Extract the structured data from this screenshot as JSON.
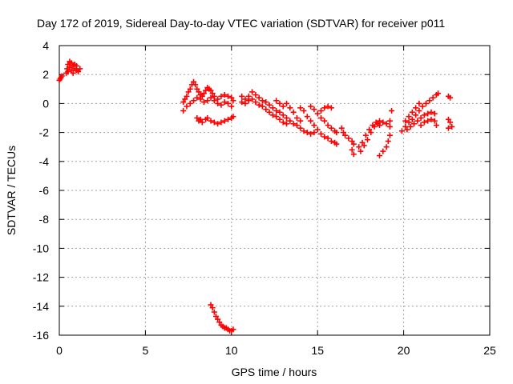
{
  "chart_data": {
    "type": "scatter",
    "title": "Day 172 of 2019, Sidereal Day-to-day VTEC variation (SDTVAR) for receiver p011",
    "xlabel": "GPS time / hours",
    "ylabel": "SDTVAR / TECUs",
    "xlim": [
      0,
      25
    ],
    "ylim": [
      -16,
      4
    ],
    "xticks": [
      0,
      5,
      10,
      15,
      20,
      25
    ],
    "yticks": [
      4,
      2,
      0,
      -2,
      -4,
      -6,
      -8,
      -10,
      -12,
      -14,
      -16
    ],
    "grid": true,
    "marker": "+",
    "color": "#ff0000",
    "series": [
      {
        "name": "SDTVAR",
        "points": [
          [
            0.0,
            1.6
          ],
          [
            0.05,
            1.7
          ],
          [
            0.1,
            1.8
          ],
          [
            0.15,
            1.9
          ],
          [
            0.4,
            2.1
          ],
          [
            0.45,
            2.4
          ],
          [
            0.5,
            2.7
          ],
          [
            0.6,
            2.9
          ],
          [
            0.7,
            2.8
          ],
          [
            0.8,
            2.6
          ],
          [
            0.9,
            2.4
          ],
          [
            1.0,
            2.3
          ],
          [
            1.1,
            2.2
          ],
          [
            1.2,
            2.4
          ],
          [
            0.5,
            2.2
          ],
          [
            0.6,
            2.5
          ],
          [
            0.7,
            2.3
          ],
          [
            0.8,
            2.1
          ],
          [
            0.9,
            2.7
          ],
          [
            1.0,
            2.6
          ],
          [
            7.2,
            0.1
          ],
          [
            7.3,
            0.3
          ],
          [
            7.4,
            0.5
          ],
          [
            7.5,
            0.8
          ],
          [
            7.6,
            1.0
          ],
          [
            7.7,
            1.3
          ],
          [
            7.8,
            1.5
          ],
          [
            7.9,
            1.3
          ],
          [
            8.0,
            1.0
          ],
          [
            8.1,
            0.8
          ],
          [
            8.2,
            0.6
          ],
          [
            8.3,
            0.5
          ],
          [
            8.4,
            0.7
          ],
          [
            8.5,
            0.9
          ],
          [
            8.6,
            1.1
          ],
          [
            8.7,
            1.0
          ],
          [
            8.8,
            0.9
          ],
          [
            8.9,
            0.7
          ],
          [
            9.0,
            0.5
          ],
          [
            9.2,
            0.3
          ],
          [
            9.4,
            0.5
          ],
          [
            9.6,
            0.6
          ],
          [
            9.8,
            0.5
          ],
          [
            10.0,
            0.4
          ],
          [
            10.1,
            0.2
          ],
          [
            7.2,
            -0.5
          ],
          [
            7.4,
            -0.2
          ],
          [
            7.6,
            0.0
          ],
          [
            7.8,
            0.2
          ],
          [
            8.0,
            0.4
          ],
          [
            8.2,
            0.3
          ],
          [
            8.4,
            0.1
          ],
          [
            8.6,
            0.2
          ],
          [
            8.8,
            0.4
          ],
          [
            9.0,
            0.2
          ],
          [
            9.2,
            0.0
          ],
          [
            9.4,
            -0.1
          ],
          [
            9.6,
            0.1
          ],
          [
            9.8,
            0.0
          ],
          [
            10.0,
            -0.2
          ],
          [
            8.0,
            -1.0
          ],
          [
            8.1,
            -1.2
          ],
          [
            8.2,
            -1.1
          ],
          [
            8.3,
            -1.3
          ],
          [
            8.5,
            -1.1
          ],
          [
            8.6,
            -1.0
          ],
          [
            8.8,
            -1.2
          ],
          [
            9.0,
            -1.3
          ],
          [
            9.2,
            -1.4
          ],
          [
            9.4,
            -1.3
          ],
          [
            9.6,
            -1.2
          ],
          [
            9.8,
            -1.1
          ],
          [
            10.0,
            -1.0
          ],
          [
            10.1,
            -0.9
          ],
          [
            8.8,
            -13.9
          ],
          [
            8.9,
            -14.1
          ],
          [
            9.0,
            -14.4
          ],
          [
            9.1,
            -14.7
          ],
          [
            9.2,
            -14.9
          ],
          [
            9.3,
            -15.1
          ],
          [
            9.4,
            -15.3
          ],
          [
            9.5,
            -15.4
          ],
          [
            9.6,
            -15.5
          ],
          [
            9.7,
            -15.5
          ],
          [
            9.8,
            -15.6
          ],
          [
            9.9,
            -15.7
          ],
          [
            10.0,
            -15.7
          ],
          [
            10.1,
            -15.6
          ],
          [
            10.6,
            0.5
          ],
          [
            10.8,
            0.3
          ],
          [
            11.0,
            0.5
          ],
          [
            11.2,
            0.8
          ],
          [
            11.4,
            0.6
          ],
          [
            11.6,
            0.4
          ],
          [
            11.8,
            0.2
          ],
          [
            12.0,
            0.1
          ],
          [
            12.2,
            -0.1
          ],
          [
            12.4,
            -0.3
          ],
          [
            12.6,
            -0.5
          ],
          [
            12.8,
            -0.6
          ],
          [
            13.0,
            -0.8
          ],
          [
            13.2,
            -1.0
          ],
          [
            10.6,
            0.1
          ],
          [
            10.8,
            0.0
          ],
          [
            11.0,
            0.2
          ],
          [
            11.2,
            0.3
          ],
          [
            11.4,
            0.1
          ],
          [
            11.6,
            -0.1
          ],
          [
            11.8,
            -0.2
          ],
          [
            12.0,
            -0.4
          ],
          [
            12.2,
            -0.6
          ],
          [
            12.4,
            -0.8
          ],
          [
            12.6,
            -0.9
          ],
          [
            12.8,
            -1.1
          ],
          [
            13.0,
            -1.3
          ],
          [
            13.2,
            -1.4
          ],
          [
            12.6,
            0.2
          ],
          [
            12.8,
            0.0
          ],
          [
            13.0,
            -0.2
          ],
          [
            13.2,
            0.0
          ],
          [
            13.4,
            -0.3
          ],
          [
            13.6,
            -0.6
          ],
          [
            13.8,
            -1.0
          ],
          [
            14.0,
            -1.2
          ],
          [
            13.4,
            -1.2
          ],
          [
            13.6,
            -1.4
          ],
          [
            13.8,
            -1.5
          ],
          [
            14.0,
            -1.7
          ],
          [
            14.2,
            -1.9
          ],
          [
            14.4,
            -2.0
          ],
          [
            14.6,
            -2.1
          ],
          [
            14.8,
            -2.0
          ],
          [
            14.0,
            -0.3
          ],
          [
            14.2,
            -0.5
          ],
          [
            14.4,
            -0.9
          ],
          [
            14.6,
            -1.2
          ],
          [
            14.8,
            -1.5
          ],
          [
            15.0,
            -1.8
          ],
          [
            15.2,
            -2.1
          ],
          [
            15.4,
            -2.3
          ],
          [
            15.6,
            -2.4
          ],
          [
            15.8,
            -2.6
          ],
          [
            16.0,
            -2.7
          ],
          [
            16.1,
            -2.8
          ],
          [
            14.6,
            -0.2
          ],
          [
            14.8,
            -0.4
          ],
          [
            15.0,
            -0.7
          ],
          [
            15.2,
            -0.5
          ],
          [
            15.4,
            -0.3
          ],
          [
            15.6,
            -0.2
          ],
          [
            15.8,
            -0.3
          ],
          [
            15.2,
            -1.0
          ],
          [
            15.4,
            -1.2
          ],
          [
            15.6,
            -1.5
          ],
          [
            15.8,
            -1.7
          ],
          [
            16.0,
            -1.9
          ],
          [
            16.1,
            -2.0
          ],
          [
            16.4,
            -1.7
          ],
          [
            16.5,
            -2.0
          ],
          [
            16.6,
            -2.2
          ],
          [
            16.8,
            -2.4
          ],
          [
            17.0,
            -2.6
          ],
          [
            17.1,
            -2.8
          ],
          [
            17.0,
            -3.2
          ],
          [
            17.1,
            -3.5
          ],
          [
            17.4,
            -3.0
          ],
          [
            17.6,
            -2.7
          ],
          [
            17.8,
            -2.2
          ],
          [
            18.0,
            -1.8
          ],
          [
            18.2,
            -1.5
          ],
          [
            18.4,
            -1.3
          ],
          [
            18.6,
            -1.2
          ],
          [
            17.5,
            -3.3
          ],
          [
            17.7,
            -2.9
          ],
          [
            17.9,
            -2.5
          ],
          [
            18.1,
            -2.0
          ],
          [
            18.3,
            -1.6
          ],
          [
            18.5,
            -1.4
          ],
          [
            18.6,
            -3.6
          ],
          [
            18.8,
            -3.3
          ],
          [
            19.0,
            -3.0
          ],
          [
            19.1,
            -2.6
          ],
          [
            19.2,
            -2.2
          ],
          [
            18.6,
            -1.5
          ],
          [
            18.8,
            -1.3
          ],
          [
            19.0,
            -1.4
          ],
          [
            19.2,
            -1.2
          ],
          [
            19.3,
            -0.5
          ],
          [
            19.2,
            -1.6
          ],
          [
            19.9,
            -1.9
          ],
          [
            20.1,
            -1.6
          ],
          [
            20.3,
            -1.3
          ],
          [
            20.5,
            -1.1
          ],
          [
            20.7,
            -0.8
          ],
          [
            20.9,
            -0.5
          ],
          [
            21.1,
            -0.2
          ],
          [
            21.3,
            0.0
          ],
          [
            21.5,
            0.2
          ],
          [
            21.7,
            0.4
          ],
          [
            21.9,
            0.6
          ],
          [
            22.0,
            0.7
          ],
          [
            20.1,
            -1.2
          ],
          [
            20.3,
            -0.9
          ],
          [
            20.5,
            -0.6
          ],
          [
            20.7,
            -0.3
          ],
          [
            20.9,
            0.0
          ],
          [
            20.2,
            -1.8
          ],
          [
            20.4,
            -1.6
          ],
          [
            20.6,
            -1.4
          ],
          [
            20.8,
            -1.2
          ],
          [
            21.0,
            -1.0
          ],
          [
            21.2,
            -0.8
          ],
          [
            21.4,
            -0.7
          ],
          [
            21.6,
            -0.6
          ],
          [
            21.8,
            -0.7
          ],
          [
            21.0,
            -1.5
          ],
          [
            21.2,
            -1.3
          ],
          [
            21.4,
            -1.2
          ],
          [
            21.6,
            -1.1
          ],
          [
            21.8,
            -1.2
          ],
          [
            21.9,
            -1.5
          ],
          [
            22.6,
            0.5
          ],
          [
            22.7,
            0.4
          ],
          [
            22.6,
            -1.1
          ],
          [
            22.7,
            -1.3
          ],
          [
            22.8,
            -1.6
          ],
          [
            22.6,
            -1.7
          ]
        ]
      }
    ]
  }
}
